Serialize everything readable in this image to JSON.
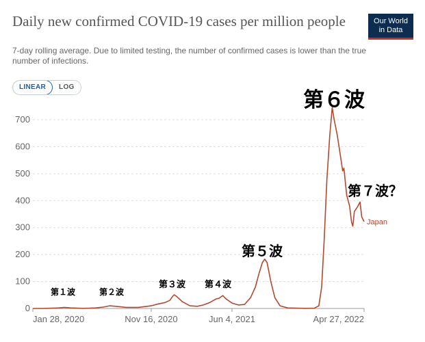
{
  "header": {
    "title": "Daily new confirmed COVID-19 cases per million people",
    "subtitle": "7-day rolling average. Due to limited testing, the number of confirmed cases is lower than the true number of infections.",
    "logo_line1": "Our World",
    "logo_line2": "in Data"
  },
  "controls": {
    "linear_label": "LINEAR",
    "log_label": "LOG",
    "selected": "LINEAR"
  },
  "annotations": {
    "wave1": "第１波",
    "wave2": "第２波",
    "wave3": "第３波",
    "wave4": "第４波",
    "wave5": "第５波",
    "wave6": "第６波",
    "wave7": "第７波？"
  },
  "colors": {
    "series": "#b5472c",
    "grid": "#dddddd",
    "logo_bg": "#0c2c50",
    "logo_accent": "#d42b21",
    "toggle_active": "#1b5ea8"
  },
  "chart_data": {
    "type": "line",
    "title": "Daily new confirmed COVID-19 cases per million people",
    "xlabel": "",
    "ylabel": "",
    "ylim": [
      0,
      700
    ],
    "yticks": [
      0,
      100,
      200,
      300,
      400,
      500,
      600,
      700
    ],
    "xticks": [
      "Jan 28, 2020",
      "Nov 16, 2020",
      "Jun 4, 2021",
      "Apr 27, 2022"
    ],
    "xlim": [
      "2020-01-28",
      "2022-04-27"
    ],
    "grid": true,
    "series": [
      {
        "name": "Japan",
        "color": "#b5472c",
        "points": [
          [
            "2020-01-28",
            0
          ],
          [
            "2020-03-01",
            0.5
          ],
          [
            "2020-04-01",
            2
          ],
          [
            "2020-04-15",
            4
          ],
          [
            "2020-05-01",
            2
          ],
          [
            "2020-06-01",
            0.5
          ],
          [
            "2020-07-01",
            2
          ],
          [
            "2020-07-20",
            5
          ],
          [
            "2020-08-05",
            10
          ],
          [
            "2020-08-20",
            8
          ],
          [
            "2020-09-15",
            4
          ],
          [
            "2020-10-15",
            4
          ],
          [
            "2020-11-16",
            10
          ],
          [
            "2020-12-01",
            16
          ],
          [
            "2020-12-20",
            22
          ],
          [
            "2021-01-01",
            30
          ],
          [
            "2021-01-08",
            45
          ],
          [
            "2021-01-12",
            51
          ],
          [
            "2021-01-20",
            42
          ],
          [
            "2021-02-01",
            25
          ],
          [
            "2021-02-20",
            10
          ],
          [
            "2021-03-10",
            8
          ],
          [
            "2021-03-25",
            13
          ],
          [
            "2021-04-10",
            22
          ],
          [
            "2021-04-25",
            35
          ],
          [
            "2021-05-03",
            38
          ],
          [
            "2021-05-12",
            48
          ],
          [
            "2021-05-20",
            36
          ],
          [
            "2021-06-04",
            20
          ],
          [
            "2021-06-20",
            13
          ],
          [
            "2021-07-05",
            15
          ],
          [
            "2021-07-20",
            40
          ],
          [
            "2021-08-01",
            80
          ],
          [
            "2021-08-10",
            130
          ],
          [
            "2021-08-18",
            170
          ],
          [
            "2021-08-24",
            183
          ],
          [
            "2021-08-30",
            170
          ],
          [
            "2021-09-08",
            100
          ],
          [
            "2021-09-18",
            40
          ],
          [
            "2021-10-01",
            10
          ],
          [
            "2021-10-20",
            2
          ],
          [
            "2021-12-01",
            0.5
          ],
          [
            "2021-12-25",
            1
          ],
          [
            "2022-01-05",
            10
          ],
          [
            "2022-01-12",
            80
          ],
          [
            "2022-01-18",
            250
          ],
          [
            "2022-01-25",
            480
          ],
          [
            "2022-02-01",
            640
          ],
          [
            "2022-02-07",
            745
          ],
          [
            "2022-02-12",
            700
          ],
          [
            "2022-02-20",
            640
          ],
          [
            "2022-02-28",
            560
          ],
          [
            "2022-03-05",
            510
          ],
          [
            "2022-03-08",
            520
          ],
          [
            "2022-03-15",
            420
          ],
          [
            "2022-03-22",
            380
          ],
          [
            "2022-03-27",
            320
          ],
          [
            "2022-03-30",
            305
          ],
          [
            "2022-04-03",
            360
          ],
          [
            "2022-04-10",
            375
          ],
          [
            "2022-04-17",
            395
          ],
          [
            "2022-04-21",
            340
          ],
          [
            "2022-04-27",
            322
          ]
        ]
      }
    ]
  }
}
